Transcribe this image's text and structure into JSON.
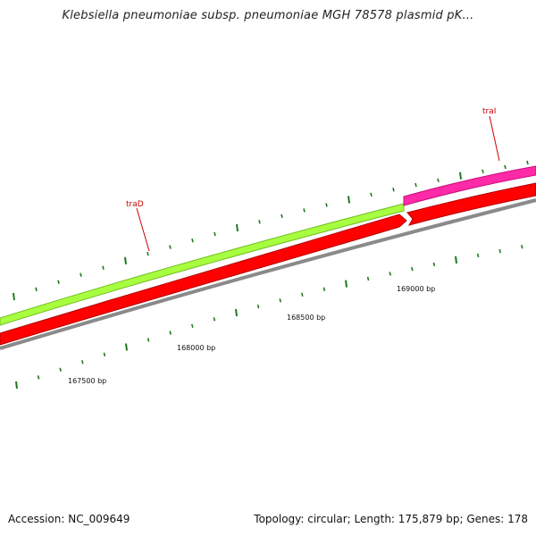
{
  "title": "Klebsiella pneumoniae subsp. pneumoniae MGH 78578 plasmid pK...",
  "footer": {
    "accession": "Accession: NC_009649",
    "summary": "Topology: circular; Length: 175,879 bp; Genes: 178"
  },
  "colors": {
    "backbone": "#8a8a8a",
    "gene_red": "#ff0000",
    "gene_green": "#a8ff40",
    "gene_magenta": "#ff2aa8",
    "tick": "#1e7a1e",
    "label": "#cc0000"
  },
  "position_labels": [
    "167500 bp",
    "168000 bp",
    "168500 bp",
    "169000 bp"
  ],
  "genes": [
    {
      "name": "traD",
      "color_key": "gene_green"
    },
    {
      "name": "traI",
      "color_key": "gene_magenta"
    }
  ]
}
